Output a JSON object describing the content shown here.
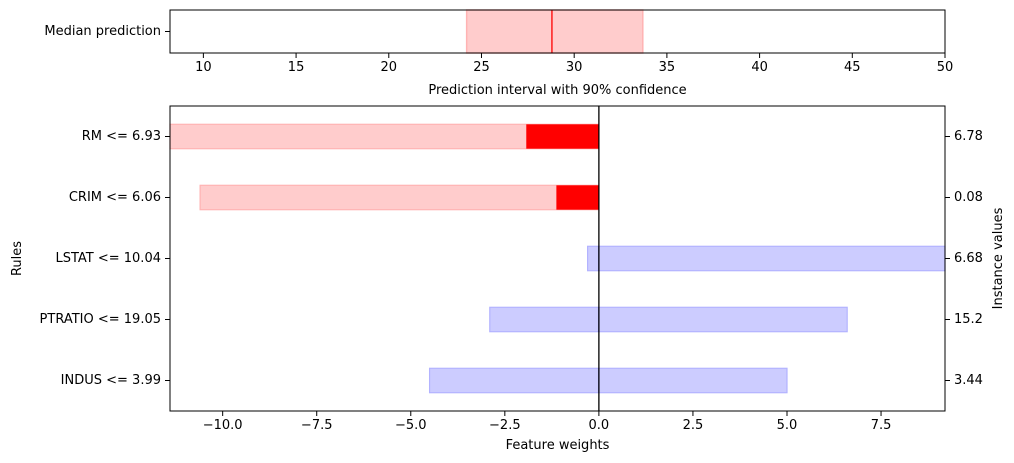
{
  "chart_data": [
    {
      "type": "interval",
      "ytick_labels": [
        "Median prediction"
      ],
      "xlabel": "Prediction interval with 90% confidence",
      "xlim": [
        8.2,
        50
      ],
      "xticks": [
        10,
        15,
        20,
        25,
        30,
        35,
        40,
        45,
        50
      ],
      "xtick_labels": [
        "10",
        "15",
        "20",
        "25",
        "30",
        "35",
        "40",
        "45",
        "50"
      ],
      "interval": [
        24.2,
        33.7
      ],
      "median": 28.8,
      "colors": {
        "interval_fill": "#ffcccc",
        "interval_edge": "#ffb3b3",
        "median_line": "#ff0000"
      }
    },
    {
      "type": "bar",
      "orientation": "horizontal",
      "ylabel": "Rules",
      "y2label": "Instance values",
      "xlabel": "Feature weights",
      "xlim": [
        -11.4,
        9.2
      ],
      "xticks": [
        -10.0,
        -7.5,
        -5.0,
        -2.5,
        0.0,
        2.5,
        5.0,
        7.5
      ],
      "xtick_labels": [
        "−10.0",
        "−7.5",
        "−5.0",
        "−2.5",
        "0.0",
        "2.5",
        "5.0",
        "7.5"
      ],
      "categories": [
        "RM <= 6.93",
        "CRIM <= 6.06",
        "LSTAT <= 10.04",
        "PTRATIO <= 19.05",
        "INDUS <= 3.99"
      ],
      "instance_values": [
        "6.78",
        "0.08",
        "6.68",
        "15.2",
        "3.44"
      ],
      "series": [
        {
          "weight": -1.93,
          "uncertainty_interval": [
            -11.4,
            0.0
          ]
        },
        {
          "weight": -1.13,
          "uncertainty_interval": [
            -10.6,
            0.0
          ]
        },
        {
          "weight": 0.0,
          "uncertainty_interval": [
            -0.3,
            9.2
          ]
        },
        {
          "weight": 0.0,
          "uncertainty_interval": [
            -2.9,
            6.6
          ]
        },
        {
          "weight": 0.0,
          "uncertainty_interval": [
            -4.5,
            5.0
          ]
        }
      ],
      "colors": {
        "negative_fill": "#ffcccc",
        "negative_edge": "#ffb3b3",
        "negative_weight": "#ff0000",
        "positive_fill": "#ccccff",
        "positive_edge": "#b3b3ff",
        "positive_weight": "#0000ff",
        "zero_line": "#000000"
      }
    }
  ]
}
